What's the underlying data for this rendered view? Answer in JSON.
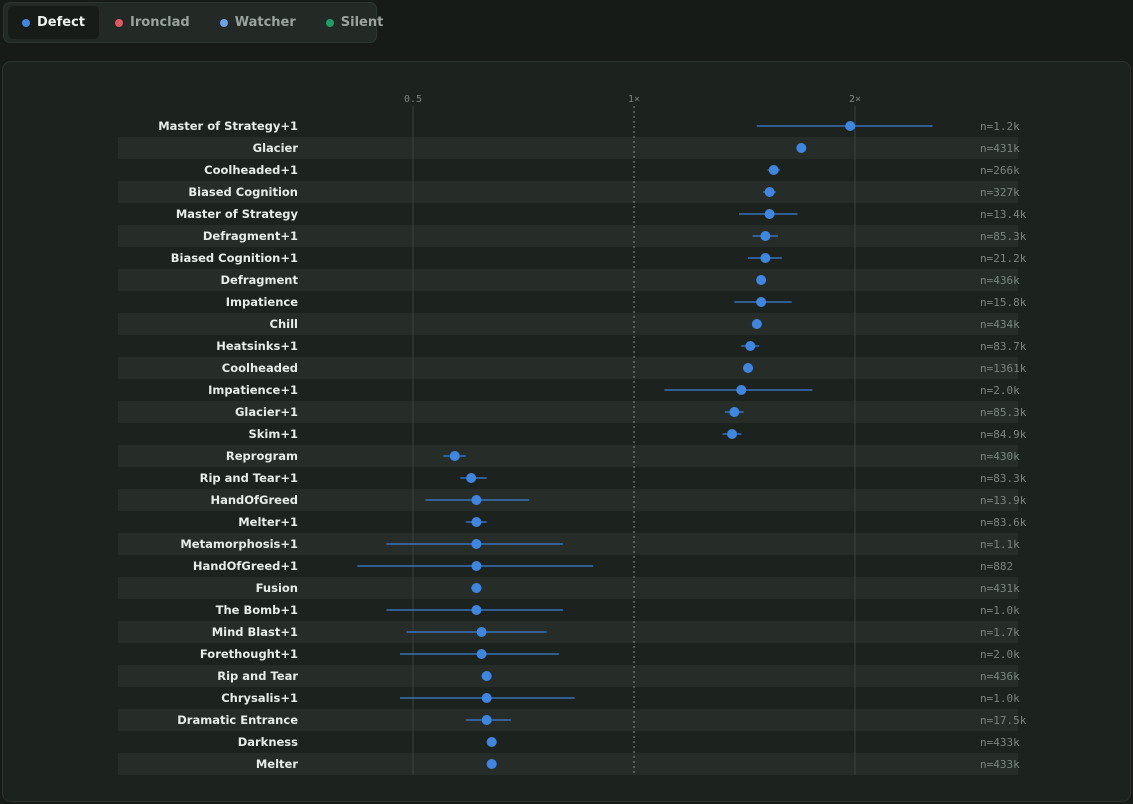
{
  "tabs": [
    {
      "label": "Defect",
      "color": "#3f86e0",
      "active": true
    },
    {
      "label": "Ironclad",
      "color": "#e0575f",
      "active": false
    },
    {
      "label": "Watcher",
      "color": "#6fa3e8",
      "active": false
    },
    {
      "label": "Silent",
      "color": "#1f9e6a",
      "active": false
    }
  ],
  "colors": {
    "point": "#3f86e0",
    "background": "#1c221e",
    "stripe": "#262d28"
  },
  "chart_data": {
    "type": "scatter",
    "x_scale": "log",
    "x_ticks": [
      {
        "value": 0.5,
        "label": "0.5"
      },
      {
        "value": 1,
        "label": "1×"
      },
      {
        "value": 2,
        "label": "2×"
      }
    ],
    "reference_line": 1,
    "rows": [
      {
        "name": "Master of Strategy+1",
        "value": 1.97,
        "low": 1.47,
        "high": 2.55,
        "n": "n=1.2k"
      },
      {
        "name": "Glacier",
        "value": 1.69,
        "low": 1.67,
        "high": 1.71,
        "n": "n=431k"
      },
      {
        "name": "Coolheaded+1",
        "value": 1.55,
        "low": 1.52,
        "high": 1.58,
        "n": "n=266k"
      },
      {
        "name": "Biased Cognition",
        "value": 1.53,
        "low": 1.5,
        "high": 1.56,
        "n": "n=327k"
      },
      {
        "name": "Master of Strategy",
        "value": 1.53,
        "low": 1.39,
        "high": 1.67,
        "n": "n=13.4k"
      },
      {
        "name": "Defragment+1",
        "value": 1.51,
        "low": 1.45,
        "high": 1.57,
        "n": "n=85.3k"
      },
      {
        "name": "Biased Cognition+1",
        "value": 1.51,
        "low": 1.43,
        "high": 1.59,
        "n": "n=21.2k"
      },
      {
        "name": "Defragment",
        "value": 1.49,
        "low": 1.47,
        "high": 1.51,
        "n": "n=436k"
      },
      {
        "name": "Impatience",
        "value": 1.49,
        "low": 1.37,
        "high": 1.64,
        "n": "n=15.8k"
      },
      {
        "name": "Chill",
        "value": 1.47,
        "low": 1.45,
        "high": 1.49,
        "n": "n=434k"
      },
      {
        "name": "Heatsinks+1",
        "value": 1.44,
        "low": 1.4,
        "high": 1.48,
        "n": "n=83.7k"
      },
      {
        "name": "Coolheaded",
        "value": 1.43,
        "low": 1.42,
        "high": 1.44,
        "n": "n=1361k"
      },
      {
        "name": "Impatience+1",
        "value": 1.4,
        "low": 1.1,
        "high": 1.75,
        "n": "n=2.0k"
      },
      {
        "name": "Glacier+1",
        "value": 1.37,
        "low": 1.33,
        "high": 1.41,
        "n": "n=85.3k"
      },
      {
        "name": "Skim+1",
        "value": 1.36,
        "low": 1.32,
        "high": 1.4,
        "n": "n=84.9k"
      },
      {
        "name": "Reprogram",
        "value": 0.57,
        "low": 0.55,
        "high": 0.59,
        "n": "n=430k"
      },
      {
        "name": "Rip and Tear+1",
        "value": 0.6,
        "low": 0.58,
        "high": 0.63,
        "n": "n=83.3k"
      },
      {
        "name": "HandOfGreed",
        "value": 0.61,
        "low": 0.52,
        "high": 0.72,
        "n": "n=13.9k"
      },
      {
        "name": "Melter+1",
        "value": 0.61,
        "low": 0.59,
        "high": 0.63,
        "n": "n=83.6k"
      },
      {
        "name": "Metamorphosis+1",
        "value": 0.61,
        "low": 0.46,
        "high": 0.8,
        "n": "n=1.1k"
      },
      {
        "name": "HandOfGreed+1",
        "value": 0.61,
        "low": 0.42,
        "high": 0.88,
        "n": "n=882"
      },
      {
        "name": "Fusion",
        "value": 0.61,
        "low": 0.6,
        "high": 0.62,
        "n": "n=431k"
      },
      {
        "name": "The Bomb+1",
        "value": 0.61,
        "low": 0.46,
        "high": 0.8,
        "n": "n=1.0k"
      },
      {
        "name": "Mind Blast+1",
        "value": 0.62,
        "low": 0.49,
        "high": 0.76,
        "n": "n=1.7k"
      },
      {
        "name": "Forethought+1",
        "value": 0.62,
        "low": 0.48,
        "high": 0.79,
        "n": "n=2.0k"
      },
      {
        "name": "Rip and Tear",
        "value": 0.63,
        "low": 0.62,
        "high": 0.64,
        "n": "n=436k"
      },
      {
        "name": "Chrysalis+1",
        "value": 0.63,
        "low": 0.48,
        "high": 0.83,
        "n": "n=1.0k"
      },
      {
        "name": "Dramatic Entrance",
        "value": 0.63,
        "low": 0.59,
        "high": 0.68,
        "n": "n=17.5k"
      },
      {
        "name": "Darkness",
        "value": 0.64,
        "low": 0.63,
        "high": 0.65,
        "n": "n=433k"
      },
      {
        "name": "Melter",
        "value": 0.64,
        "low": 0.63,
        "high": 0.65,
        "n": "n=433k"
      }
    ]
  }
}
